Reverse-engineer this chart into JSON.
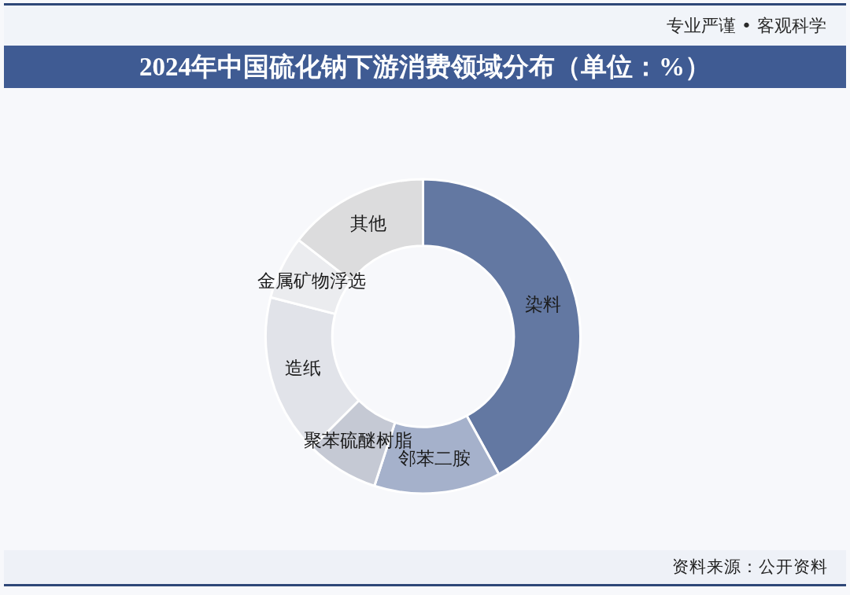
{
  "chart_data": {
    "type": "donut",
    "title": "2024年中国硫化钠下游消费领域分布（单位：%）",
    "categories": [
      "染料",
      "邻苯二胺",
      "聚苯硫醚树脂",
      "造纸",
      "金属矿物浮选",
      "其他"
    ],
    "values": [
      42,
      13,
      7.5,
      16.5,
      6.5,
      14.5
    ],
    "colors": [
      "#6378a2",
      "#a5b1cb",
      "#c5c9d4",
      "#e1e3e9",
      "#ebecef",
      "#dcdcdd"
    ],
    "annotations": [
      "专业严谨 • 客观科学",
      "资料来源：公开资料"
    ]
  }
}
